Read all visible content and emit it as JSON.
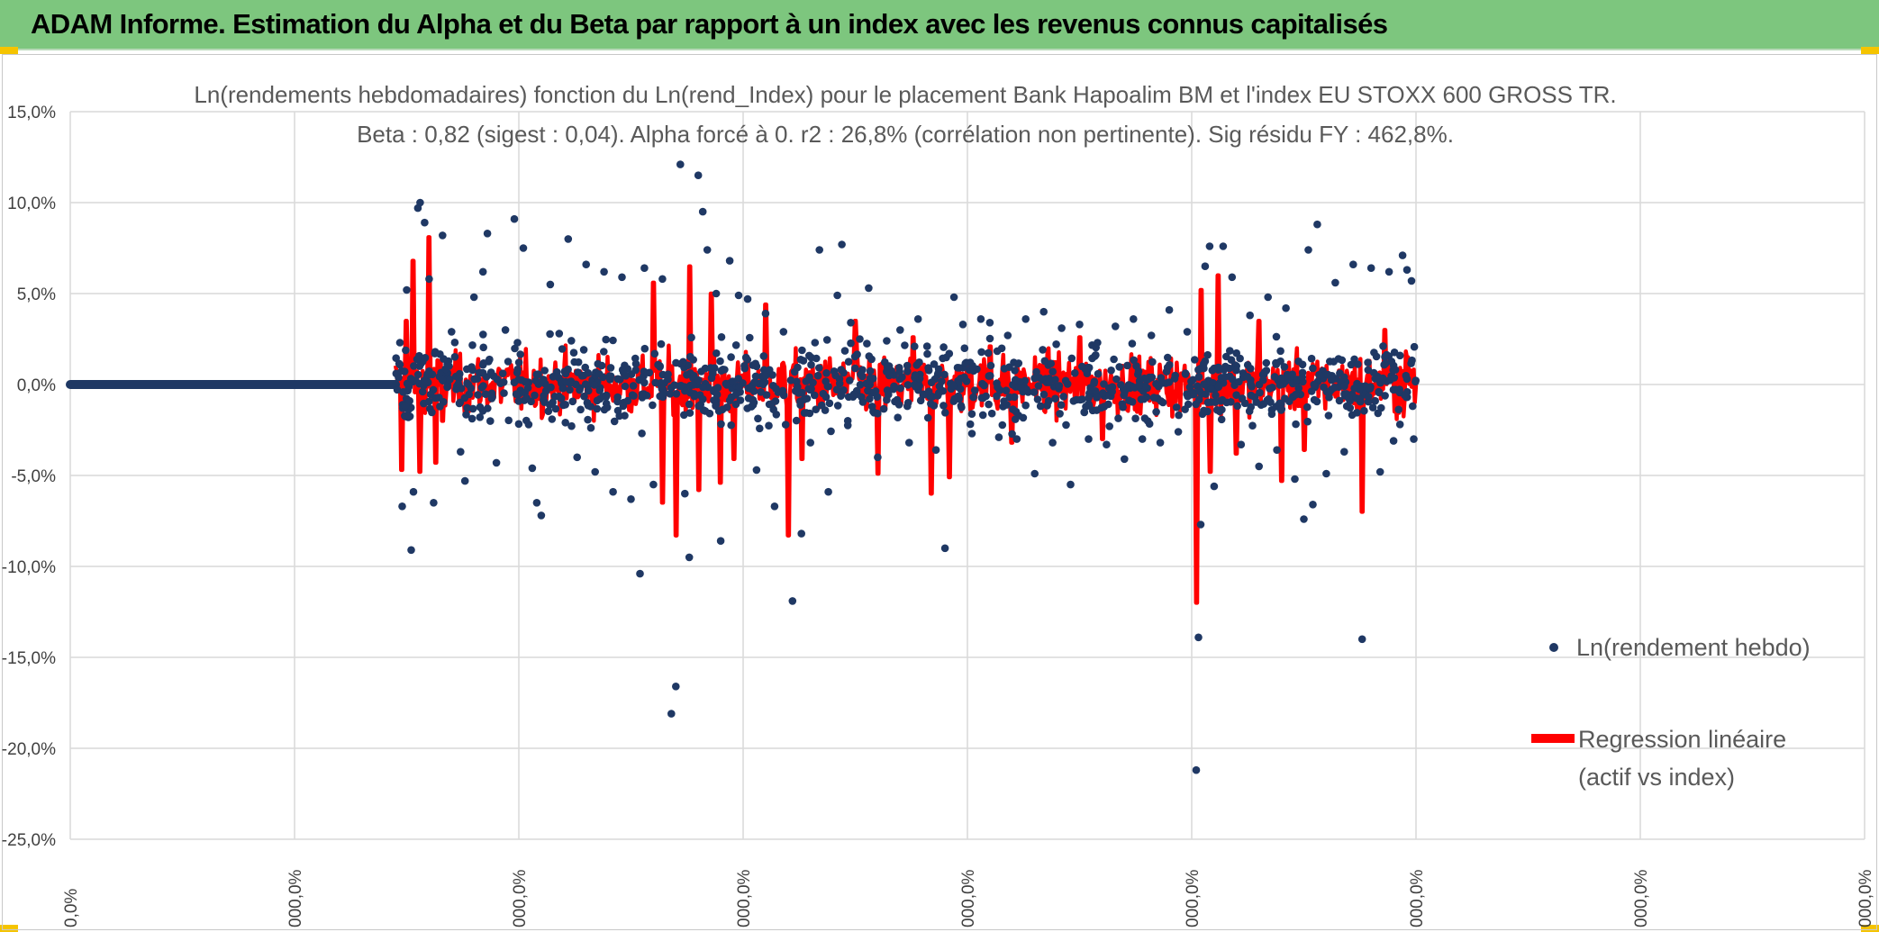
{
  "header": {
    "title": "ADAM Informe. Estimation du Alpha et du Beta par rapport à un index avec les revenus connus capitalisés"
  },
  "colors": {
    "header_bg": "#7dc67e",
    "scatter": "#1f3864",
    "regression": "#ff0000",
    "grid": "#d9d9d9",
    "corner_accent": "#f5c400"
  },
  "chart_data": {
    "type": "scatter",
    "title_line1": "Ln(rendements hebdomadaires) fonction du Ln(rend_Index) pour le placement Bank Hapoalim BM et l'index EU STOXX 600 GROSS TR.",
    "title_line2": "Beta : 0,82 (sigest : 0,04). Alpha forcé à 0. r2 : 26,8% (corrélation non pertinente). Sig résidu FY : 462,8%.",
    "ylim": [
      -25,
      15
    ],
    "y_ticks": [
      "15,0%",
      "10,0%",
      "5,0%",
      "0,0%",
      "-5,0%",
      "-10,0%",
      "-15,0%",
      "-20,0%",
      "-25,0%"
    ],
    "x_ticks": [
      "0,0%",
      "000,0%",
      "000,0%",
      "000,0%",
      "000,0%",
      "000,0%",
      "000,0%",
      "000,0%",
      "000,0%"
    ],
    "grid": true,
    "legend_position": "bottom-right",
    "series": [
      {
        "name": "Ln(rendement hebdo)",
        "style": "markers",
        "flat_segment": {
          "x_from": 0,
          "x_to": 1.45,
          "y": 0.0
        },
        "points": [
          [
            1.47,
            2.3
          ],
          [
            1.48,
            -6.7
          ],
          [
            1.5,
            5.2
          ],
          [
            1.52,
            -9.1
          ],
          [
            1.53,
            -5.9
          ],
          [
            1.55,
            9.7
          ],
          [
            1.56,
            10.0
          ],
          [
            1.58,
            8.9
          ],
          [
            1.6,
            5.8
          ],
          [
            1.62,
            -6.5
          ],
          [
            1.66,
            8.2
          ],
          [
            1.7,
            2.9
          ],
          [
            1.74,
            -3.7
          ],
          [
            1.76,
            -5.3
          ],
          [
            1.8,
            4.8
          ],
          [
            1.84,
            6.2
          ],
          [
            1.86,
            8.3
          ],
          [
            1.9,
            -4.3
          ],
          [
            1.94,
            3.0
          ],
          [
            1.98,
            9.1
          ],
          [
            2.02,
            7.5
          ],
          [
            2.06,
            -4.6
          ],
          [
            2.08,
            -6.5
          ],
          [
            2.1,
            -7.2
          ],
          [
            2.14,
            5.5
          ],
          [
            2.18,
            2.8
          ],
          [
            2.22,
            8.0
          ],
          [
            2.26,
            -4.0
          ],
          [
            2.3,
            6.6
          ],
          [
            2.34,
            -4.8
          ],
          [
            2.38,
            6.2
          ],
          [
            2.42,
            -5.9
          ],
          [
            2.46,
            5.9
          ],
          [
            2.5,
            -6.3
          ],
          [
            2.54,
            -10.4
          ],
          [
            2.56,
            6.4
          ],
          [
            2.6,
            -5.5
          ],
          [
            2.64,
            5.8
          ],
          [
            2.68,
            -18.1
          ],
          [
            2.7,
            -16.6
          ],
          [
            2.72,
            12.1
          ],
          [
            2.74,
            -6.0
          ],
          [
            2.76,
            -9.5
          ],
          [
            2.8,
            11.5
          ],
          [
            2.82,
            9.5
          ],
          [
            2.84,
            7.4
          ],
          [
            2.88,
            5.0
          ],
          [
            2.9,
            -8.6
          ],
          [
            2.94,
            6.8
          ],
          [
            2.98,
            4.9
          ],
          [
            3.02,
            4.7
          ],
          [
            3.06,
            -4.7
          ],
          [
            3.1,
            3.9
          ],
          [
            3.14,
            -6.7
          ],
          [
            3.18,
            2.9
          ],
          [
            3.22,
            -11.9
          ],
          [
            3.26,
            -8.2
          ],
          [
            3.3,
            -3.2
          ],
          [
            3.34,
            7.4
          ],
          [
            3.38,
            -5.9
          ],
          [
            3.42,
            4.9
          ],
          [
            3.44,
            7.7
          ],
          [
            3.48,
            3.4
          ],
          [
            3.52,
            2.5
          ],
          [
            3.56,
            5.3
          ],
          [
            3.6,
            -4.0
          ],
          [
            3.64,
            2.4
          ],
          [
            3.7,
            3.0
          ],
          [
            3.74,
            -3.2
          ],
          [
            3.78,
            3.6
          ],
          [
            3.82,
            2.1
          ],
          [
            3.86,
            -3.6
          ],
          [
            3.9,
            -9.0
          ],
          [
            3.94,
            4.8
          ],
          [
            3.98,
            3.3
          ],
          [
            4.02,
            -2.7
          ],
          [
            4.06,
            3.6
          ],
          [
            4.1,
            3.4
          ],
          [
            4.14,
            -2.9
          ],
          [
            4.18,
            2.7
          ],
          [
            4.22,
            -3.0
          ],
          [
            4.26,
            3.6
          ],
          [
            4.3,
            -4.9
          ],
          [
            4.34,
            4.0
          ],
          [
            4.38,
            -3.2
          ],
          [
            4.42,
            3.1
          ],
          [
            4.46,
            -5.5
          ],
          [
            4.5,
            3.3
          ],
          [
            4.54,
            -3.0
          ],
          [
            4.58,
            2.3
          ],
          [
            4.62,
            -3.3
          ],
          [
            4.66,
            3.2
          ],
          [
            4.7,
            -4.1
          ],
          [
            4.74,
            3.6
          ],
          [
            4.78,
            -3.0
          ],
          [
            4.82,
            2.7
          ],
          [
            4.86,
            -3.2
          ],
          [
            4.9,
            4.1
          ],
          [
            4.94,
            -2.6
          ],
          [
            4.98,
            2.9
          ],
          [
            5.02,
            -21.2
          ],
          [
            5.03,
            -13.9
          ],
          [
            5.04,
            -7.7
          ],
          [
            5.06,
            6.5
          ],
          [
            5.08,
            7.6
          ],
          [
            5.1,
            -5.6
          ],
          [
            5.14,
            7.6
          ],
          [
            5.18,
            5.9
          ],
          [
            5.22,
            -3.3
          ],
          [
            5.26,
            3.8
          ],
          [
            5.3,
            -4.5
          ],
          [
            5.34,
            4.8
          ],
          [
            5.38,
            -3.6
          ],
          [
            5.42,
            4.2
          ],
          [
            5.46,
            -5.2
          ],
          [
            5.5,
            -7.4
          ],
          [
            5.52,
            7.4
          ],
          [
            5.54,
            -6.6
          ],
          [
            5.56,
            8.8
          ],
          [
            5.6,
            -4.9
          ],
          [
            5.64,
            5.6
          ],
          [
            5.68,
            -3.7
          ],
          [
            5.72,
            6.6
          ],
          [
            5.76,
            -14.0
          ],
          [
            5.8,
            6.4
          ],
          [
            5.84,
            -4.8
          ],
          [
            5.88,
            6.2
          ],
          [
            5.9,
            -3.1
          ],
          [
            5.94,
            7.1
          ],
          [
            5.96,
            6.3
          ],
          [
            5.98,
            5.7
          ],
          [
            5.99,
            -3.0
          ]
        ]
      },
      {
        "name": "Regression linéaire (actif vs index)",
        "style": "line",
        "x_range": [
          1.45,
          6.0
        ],
        "spikes": [
          [
            1.48,
            -4.7
          ],
          [
            1.5,
            3.5
          ],
          [
            1.53,
            6.8
          ],
          [
            1.56,
            -4.8
          ],
          [
            1.6,
            8.1
          ],
          [
            1.63,
            -4.3
          ],
          [
            1.66,
            -2.0
          ],
          [
            2.6,
            5.6
          ],
          [
            2.64,
            -6.5
          ],
          [
            2.7,
            -8.3
          ],
          [
            2.76,
            6.5
          ],
          [
            2.8,
            -5.8
          ],
          [
            2.86,
            5.0
          ],
          [
            2.9,
            -5.4
          ],
          [
            2.96,
            -4.1
          ],
          [
            3.1,
            4.4
          ],
          [
            3.2,
            -8.3
          ],
          [
            3.26,
            -4.1
          ],
          [
            3.5,
            3.5
          ],
          [
            3.6,
            -4.9
          ],
          [
            3.76,
            2.6
          ],
          [
            3.84,
            -6.0
          ],
          [
            3.92,
            -5.1
          ],
          [
            4.1,
            2.1
          ],
          [
            4.2,
            -3.2
          ],
          [
            4.5,
            2.6
          ],
          [
            4.6,
            -3.0
          ],
          [
            5.02,
            -12.0
          ],
          [
            5.04,
            5.2
          ],
          [
            5.08,
            -4.8
          ],
          [
            5.12,
            6.0
          ],
          [
            5.2,
            -3.8
          ],
          [
            5.3,
            3.5
          ],
          [
            5.4,
            -5.3
          ],
          [
            5.5,
            -3.6
          ],
          [
            5.76,
            -7.0
          ],
          [
            5.86,
            3.0
          ],
          [
            5.96,
            1.5
          ]
        ]
      }
    ]
  },
  "legend": {
    "scatter_label": "Ln(rendement hebdo)",
    "regression_line1": "Regression linéaire",
    "regression_line2": "(actif vs index)"
  }
}
